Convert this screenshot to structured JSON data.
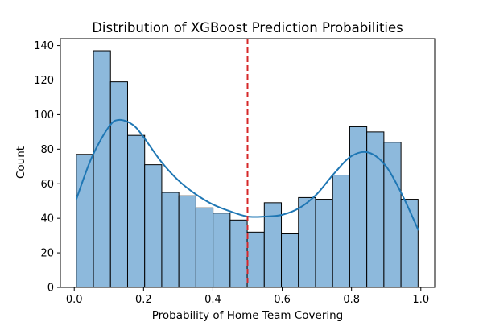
{
  "chart_data": {
    "type": "bar",
    "title": "Distribution of XGBoost Prediction Probabilities",
    "xlabel": "Probability of Home Team Covering",
    "ylabel": "Count",
    "xlim": [
      -0.04,
      1.04
    ],
    "ylim": [
      0,
      144
    ],
    "x_ticks": [
      0.0,
      0.2,
      0.4,
      0.6,
      0.8,
      1.0
    ],
    "x_tick_labels": [
      "0.0",
      "0.2",
      "0.4",
      "0.6",
      "0.8",
      "1.0"
    ],
    "y_ticks": [
      0,
      20,
      40,
      60,
      80,
      100,
      120,
      140
    ],
    "y_tick_labels": [
      "0",
      "20",
      "40",
      "60",
      "80",
      "100",
      "120",
      "140"
    ],
    "grid": false,
    "legend": "none",
    "bins": {
      "start": 0.006,
      "width": 0.0493,
      "counts": [
        77,
        137,
        119,
        88,
        71,
        55,
        53,
        46,
        43,
        39,
        32,
        49,
        31,
        52,
        51,
        65,
        93,
        90,
        84,
        51
      ]
    },
    "kde": {
      "x": [
        0.006,
        0.05,
        0.1,
        0.13,
        0.17,
        0.2,
        0.25,
        0.3,
        0.35,
        0.4,
        0.45,
        0.5,
        0.55,
        0.6,
        0.65,
        0.7,
        0.75,
        0.8,
        0.85,
        0.9,
        0.95,
        0.993
      ],
      "y": [
        51,
        75,
        93,
        97,
        94,
        87,
        73,
        62,
        54,
        48,
        44,
        41,
        41,
        42,
        46,
        54,
        66,
        76,
        78,
        70,
        52,
        33
      ]
    },
    "threshold": {
      "x": 0.5,
      "style": "dashed",
      "color": "#d62728"
    },
    "colors": {
      "bar_fill": "#8db9dc",
      "bar_edge": "#000000",
      "kde_line": "#1f77b4",
      "threshold": "#d62728"
    }
  }
}
